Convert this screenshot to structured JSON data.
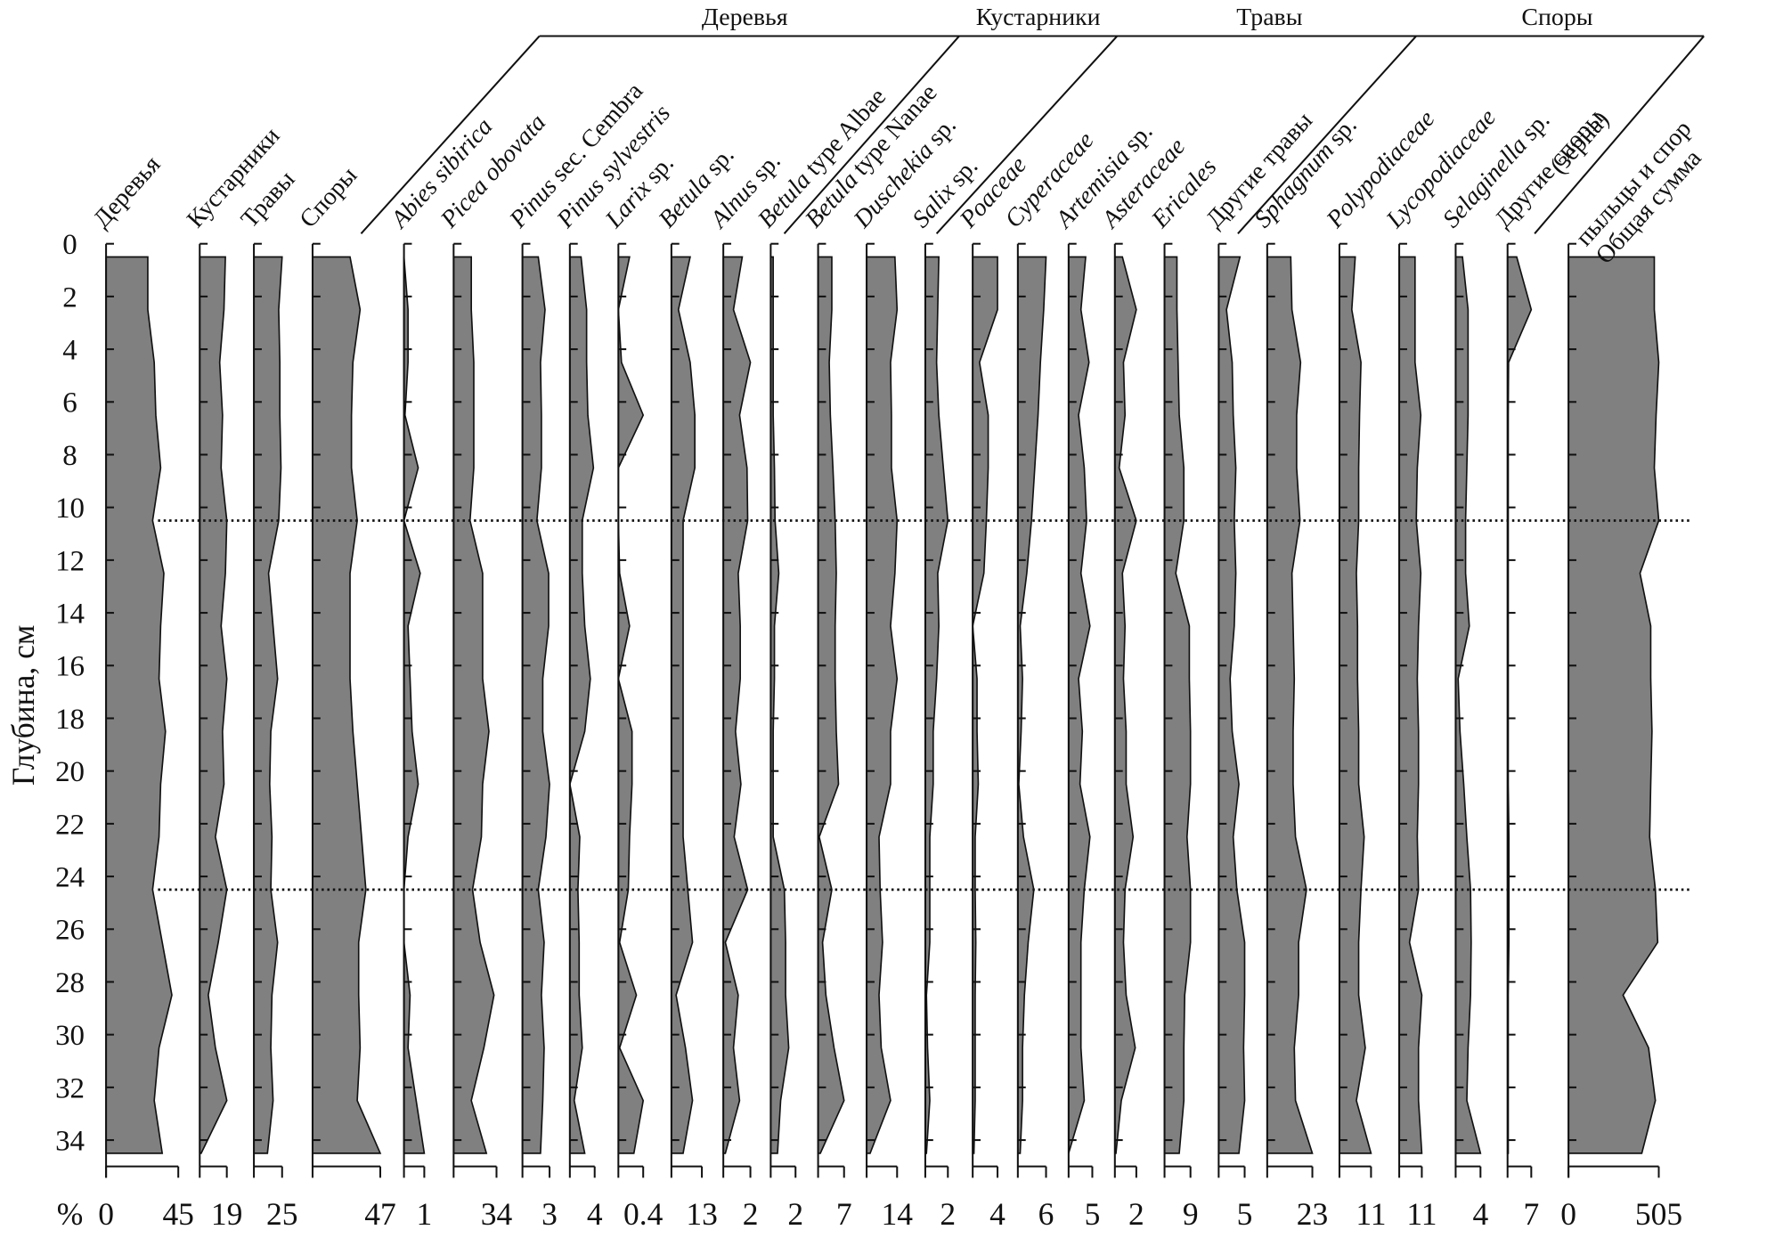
{
  "chart_data": {
    "type": "stratigraphic-area",
    "ylabel": "Глубина, см",
    "x_unit": "%",
    "ylim": [
      0,
      35
    ],
    "yticks": [
      0,
      2,
      4,
      6,
      8,
      10,
      12,
      14,
      16,
      18,
      20,
      22,
      24,
      26,
      28,
      30,
      32,
      34
    ],
    "depths": [
      0.5,
      2.5,
      4.5,
      6.5,
      8.5,
      10.5,
      12.5,
      14.5,
      16.5,
      18.5,
      20.5,
      22.5,
      24.5,
      26.5,
      28.5,
      30.5,
      32.5,
      34.5
    ],
    "zone_boundaries": [
      10.5,
      24.5
    ],
    "color": "#808080",
    "groups": [
      {
        "name": "Деревья"
      },
      {
        "name": "Кустарники"
      },
      {
        "name": "Травы"
      },
      {
        "name": "Споры"
      }
    ],
    "panels": [
      {
        "label": [
          {
            "text": "Деревья",
            "italic": false
          }
        ],
        "xlim": [
          0,
          45
        ],
        "xticks": [
          0,
          45
        ],
        "values": [
          26,
          26,
          30,
          31,
          34,
          29,
          36,
          34,
          33,
          37,
          34,
          33,
          29,
          35,
          41,
          33,
          30,
          35
        ]
      },
      {
        "label": [
          {
            "text": "Кустарники",
            "italic": false
          }
        ],
        "xlim": [
          0,
          19
        ],
        "xticks": [
          19
        ],
        "values": [
          18,
          17,
          14,
          16,
          15,
          19,
          18,
          15,
          19,
          16,
          17,
          11,
          19,
          13,
          6,
          11,
          19,
          1
        ]
      },
      {
        "label": [
          {
            "text": "Травы",
            "italic": false
          }
        ],
        "xlim": [
          0,
          25
        ],
        "xticks": [
          25
        ],
        "values": [
          25,
          22,
          23,
          23,
          24,
          22,
          13,
          17,
          21,
          15,
          14,
          16,
          15,
          21,
          16,
          15,
          17,
          12
        ]
      },
      {
        "label": [
          {
            "text": "Споры",
            "italic": false
          }
        ],
        "xlim": [
          0,
          47
        ],
        "xticks": [
          47
        ],
        "values": [
          26,
          33,
          28,
          27,
          27,
          31,
          26,
          26,
          26,
          28,
          31,
          34,
          37,
          32,
          32,
          33,
          31,
          47
        ]
      },
      {
        "label": [
          {
            "text": "Abies sibirica",
            "italic": true
          }
        ],
        "xlim": [
          0,
          1
        ],
        "xticks": [
          1
        ],
        "values": [
          0,
          0.2,
          0.2,
          0.05,
          0.7,
          0,
          0.8,
          0.2,
          0.3,
          0.4,
          0.7,
          0.2,
          0,
          0,
          0.3,
          0.2,
          0.6,
          1
        ]
      },
      {
        "label": [
          {
            "text": "Picea obovata",
            "italic": true
          }
        ],
        "xlim": [
          0,
          34
        ],
        "xticks": [
          34
        ],
        "values": [
          14,
          14,
          16,
          16,
          16,
          13,
          23,
          23,
          23,
          28,
          23,
          22,
          15,
          21,
          32,
          24,
          14,
          26
        ]
      },
      {
        "label": [
          {
            "text": "Pinus",
            "italic": true
          },
          {
            "text": "sec. Cembra",
            "italic": false
          }
        ],
        "xlim": [
          0,
          3
        ],
        "xticks": [
          3
        ],
        "values": [
          1.75,
          2.5,
          2,
          2.1,
          2.1,
          1.6,
          2.9,
          2.9,
          2.25,
          2.25,
          3,
          2.6,
          1.75,
          2.4,
          2.1,
          2.4,
          2.25,
          2
        ]
      },
      {
        "label": [
          {
            "text": "Pinus sylvestris",
            "italic": true
          }
        ],
        "xlim": [
          0,
          4
        ],
        "xticks": [
          4
        ],
        "values": [
          1.8,
          2.7,
          2.7,
          2.9,
          3.8,
          2,
          2,
          2.4,
          3.3,
          2.4,
          0,
          1.6,
          1.3,
          1.5,
          1.5,
          2,
          0.7,
          2.4
        ]
      },
      {
        "label": [
          {
            "text": "Larix",
            "italic": true
          },
          {
            "text": "sp.",
            "italic": false
          }
        ],
        "xlim": [
          0,
          0.4
        ],
        "xticks": [
          0.4
        ],
        "values": [
          0.18,
          0,
          0.05,
          0.4,
          0,
          0,
          0.02,
          0.18,
          0,
          0.22,
          0.22,
          0.18,
          0.16,
          0.02,
          0.29,
          0.02,
          0.4,
          0.25
        ]
      },
      {
        "label": [
          {
            "text": "Betula",
            "italic": true
          },
          {
            "text": "sp.",
            "italic": false
          }
        ],
        "xlim": [
          0,
          13
        ],
        "xticks": [
          13
        ],
        "values": [
          8,
          3,
          8,
          10,
          10,
          5,
          5,
          5,
          5,
          5,
          5,
          5,
          7,
          9,
          2,
          6,
          9,
          5
        ]
      },
      {
        "label": [
          {
            "text": "Alnus",
            "italic": true
          },
          {
            "text": "sp.",
            "italic": false
          }
        ],
        "xlim": [
          0,
          2
        ],
        "xticks": [
          2
        ],
        "values": [
          1.4,
          0.75,
          2,
          1.2,
          1.75,
          1.8,
          1.1,
          1.25,
          1.25,
          0.9,
          1.3,
          0.8,
          1.8,
          0.15,
          1.1,
          0.75,
          1.2,
          0.15
        ]
      },
      {
        "label": [
          {
            "text": "Betula",
            "italic": true
          },
          {
            "text": "type Albae",
            "italic": false
          }
        ],
        "xlim": [
          0,
          2
        ],
        "xticks": [
          2
        ],
        "values": [
          0.2,
          0.2,
          0.2,
          0.2,
          0.3,
          0.35,
          0.65,
          0.3,
          0.3,
          0.2,
          0.2,
          0.2,
          1.1,
          1.2,
          1.2,
          1.45,
          0.8,
          0.55
        ]
      },
      {
        "label": [
          {
            "text": "Betula",
            "italic": true
          },
          {
            "text": "type Nanae",
            "italic": false
          }
        ],
        "xlim": [
          0,
          7
        ],
        "xticks": [
          7
        ],
        "values": [
          3.7,
          3.7,
          3,
          3.3,
          4,
          4.6,
          4.9,
          4.6,
          4.6,
          4.9,
          5.5,
          0.3,
          3.7,
          1.2,
          2.1,
          4.3,
          7,
          0.6
        ]
      },
      {
        "label": [
          {
            "text": "Duschekia",
            "italic": true
          },
          {
            "text": "sp.",
            "italic": false
          }
        ],
        "xlim": [
          0,
          14
        ],
        "xticks": [
          14
        ],
        "values": [
          13,
          14,
          11,
          11.4,
          11.4,
          14,
          13,
          11,
          14,
          11,
          11,
          5.7,
          6.2,
          7.3,
          5.7,
          6.7,
          11,
          1.6
        ]
      },
      {
        "label": [
          {
            "text": "Salix",
            "italic": true
          },
          {
            "text": "sp.",
            "italic": false
          }
        ],
        "xlim": [
          0,
          2
        ],
        "xticks": [
          2
        ],
        "values": [
          1.2,
          1.1,
          1,
          1.2,
          1.6,
          2,
          1.1,
          1.2,
          1,
          0.7,
          0.7,
          0.4,
          0.4,
          0.4,
          0.1,
          0.2,
          0.4,
          0.1
        ]
      },
      {
        "label": [
          {
            "text": "Poaceae",
            "italic": true
          }
        ],
        "xlim": [
          0,
          4
        ],
        "xticks": [
          4
        ],
        "values": [
          4,
          4,
          1.1,
          2.5,
          2.5,
          2.2,
          1.8,
          0,
          0.7,
          0.7,
          0.9,
          0.4,
          0.4,
          0.5,
          0.4,
          0.4,
          0.4,
          0.2
        ]
      },
      {
        "label": [
          {
            "text": "Cyperaceae",
            "italic": true
          }
        ],
        "xlim": [
          0,
          6
        ],
        "xticks": [
          6
        ],
        "values": [
          6,
          5.5,
          4.8,
          4.3,
          3.6,
          2.9,
          1.9,
          0.5,
          1,
          0.7,
          0.2,
          1.2,
          3.4,
          2.2,
          1.4,
          1,
          1,
          0.5
        ]
      },
      {
        "label": [
          {
            "text": "Artemisia",
            "italic": true
          },
          {
            "text": "sp.",
            "italic": false
          }
        ],
        "xlim": [
          0,
          5
        ],
        "xticks": [
          5
        ],
        "values": [
          3.6,
          2.6,
          4.3,
          2.1,
          3.3,
          3.8,
          2.6,
          4.5,
          2.1,
          2.9,
          2.4,
          4.5,
          3.3,
          2.6,
          2.6,
          2.6,
          3.3,
          0
        ]
      },
      {
        "label": [
          {
            "text": "Asteraceae",
            "italic": true
          }
        ],
        "xlim": [
          0,
          2
        ],
        "xticks": [
          2
        ],
        "values": [
          0.7,
          2,
          0.8,
          0.95,
          0.4,
          2,
          0.7,
          0.95,
          0.8,
          1.05,
          1.05,
          1.7,
          0.95,
          0.8,
          1.05,
          1.9,
          0.6,
          0.1
        ]
      },
      {
        "label": [
          {
            "text": "Ericales",
            "italic": true
          }
        ],
        "xlim": [
          0,
          9
        ],
        "xticks": [
          9
        ],
        "values": [
          4.3,
          4.3,
          4.7,
          5.1,
          6.7,
          6.7,
          3.9,
          8.6,
          8.6,
          9,
          9,
          7.8,
          9,
          9,
          7,
          6.7,
          6.7,
          5.1
        ]
      },
      {
        "label": [
          {
            "text": "Другие травы",
            "italic": false
          }
        ],
        "xlim": [
          0,
          5
        ],
        "xticks": [
          5
        ],
        "values": [
          4.1,
          1.5,
          2.6,
          2.8,
          3.3,
          3,
          3.3,
          3,
          2.2,
          2.6,
          3.9,
          2.8,
          3.5,
          5,
          5,
          4.8,
          5,
          3.9
        ]
      },
      {
        "label": [
          {
            "text": "Sphagnum",
            "italic": true
          },
          {
            "text": "sp.",
            "italic": false
          }
        ],
        "xlim": [
          0,
          23
        ],
        "xticks": [
          23
        ],
        "values": [
          12,
          12.6,
          17,
          15,
          15,
          16.7,
          12.6,
          13.2,
          13.8,
          13.2,
          13.2,
          14.4,
          20,
          16,
          16,
          13.8,
          14.4,
          23
        ]
      },
      {
        "label": [
          {
            "text": "Polypodiaceae",
            "italic": true
          }
        ],
        "xlim": [
          0,
          11
        ],
        "xticks": [
          11
        ],
        "values": [
          5.5,
          4.3,
          7.5,
          7,
          6.7,
          6.7,
          5.9,
          6.3,
          6.3,
          6.7,
          6.7,
          8.6,
          7.5,
          6.7,
          6.7,
          9,
          5.9,
          11
        ]
      },
      {
        "label": [
          {
            "text": "Lycopodiaceae",
            "italic": true
          }
        ],
        "xlim": [
          0,
          11
        ],
        "xticks": [
          11
        ],
        "values": [
          7.7,
          7.7,
          7.7,
          10.5,
          8.8,
          8.3,
          10.5,
          9.4,
          8.8,
          9.4,
          9.4,
          8.8,
          9.4,
          5,
          11,
          9.4,
          9.4,
          11
        ]
      },
      {
        "label": [
          {
            "text": "Selaginella",
            "italic": true
          },
          {
            "text": "sp.",
            "italic": false
          }
        ],
        "xlim": [
          0,
          4
        ],
        "xticks": [
          4
        ],
        "values": [
          1.1,
          2,
          2,
          2,
          1.8,
          1.6,
          1.6,
          2.2,
          0.4,
          0.7,
          1.3,
          1.8,
          2.4,
          2.5,
          2.4,
          2,
          1.8,
          4
        ]
      },
      {
        "label": [
          {
            "text": "Другие споры",
            "italic": false
          }
        ],
        "xlim": [
          0,
          7
        ],
        "xticks": [
          7
        ],
        "values": [
          2.7,
          7,
          0.3,
          0.2,
          0.2,
          0.2,
          0.2,
          0.2,
          0.2,
          0.2,
          0.2,
          0.4,
          0.4,
          0.4,
          0.2,
          0.2,
          0.2,
          0.2
        ]
      },
      {
        "label": [
          {
            "text": "Общая сумма",
            "italic": false
          },
          {
            "text": "пыльцы и спор",
            "italic": false
          },
          {
            "text": "(зерна)",
            "italic": false
          }
        ],
        "label_multiline": true,
        "xlim": [
          0,
          505
        ],
        "xticks": [
          0,
          505
        ],
        "values": [
          480,
          480,
          505,
          490,
          480,
          505,
          400,
          460,
          460,
          467,
          460,
          454,
          486,
          499,
          305,
          448,
          486,
          410
        ]
      }
    ]
  }
}
